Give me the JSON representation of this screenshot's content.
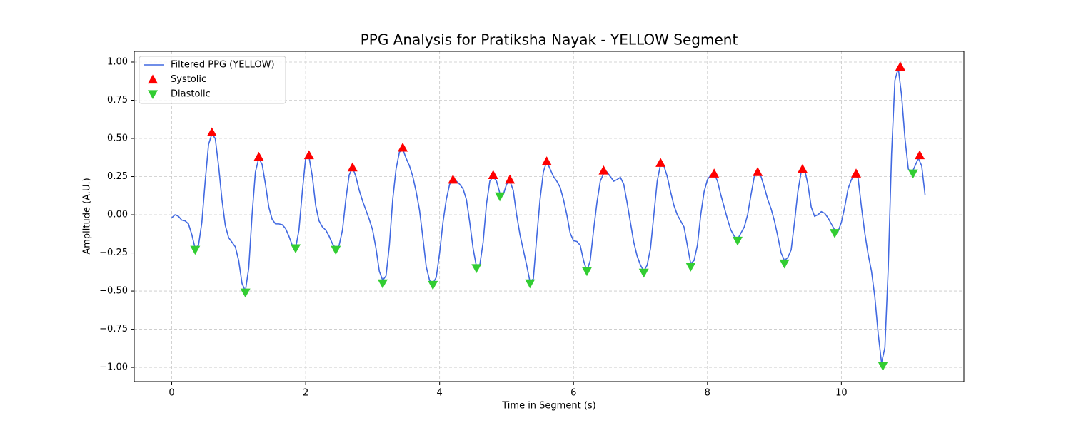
{
  "chart_data": {
    "type": "line",
    "title": "PPG Analysis for Pratiksha Nayak - YELLOW Segment",
    "x_label": "Time in Segment (s)",
    "y_label": "Amplitude (A.U.)",
    "xlim": [
      -0.56,
      11.83
    ],
    "ylim": [
      -1.093,
      1.07
    ],
    "xticks": [
      0,
      2,
      4,
      6,
      8,
      10
    ],
    "yticks": [
      {
        "value": -1,
        "label": "−1.00"
      },
      {
        "value": -0.75,
        "label": "−0.75"
      },
      {
        "value": -0.5,
        "label": "−0.50"
      },
      {
        "value": -0.25,
        "label": "−0.25"
      },
      {
        "value": 0,
        "label": "0.00"
      },
      {
        "value": 0.25,
        "label": "0.25"
      },
      {
        "value": 0.5,
        "label": "0.50"
      },
      {
        "value": 0.75,
        "label": "0.75"
      },
      {
        "value": 1,
        "label": "1.00"
      }
    ],
    "grid": true,
    "legend": "upper-left",
    "series": [
      {
        "name": "Filtered PPG (YELLOW)",
        "type": "line",
        "color": "#4169e1",
        "x": [
          0,
          0.05,
          0.1,
          0.15,
          0.2,
          0.25,
          0.3,
          0.35,
          0.4,
          0.45,
          0.5,
          0.55,
          0.6,
          0.65,
          0.7,
          0.75,
          0.8,
          0.85,
          0.9,
          0.95,
          1,
          1.05,
          1.1,
          1.15,
          1.2,
          1.25,
          1.3,
          1.35,
          1.4,
          1.45,
          1.5,
          1.55,
          1.6,
          1.65,
          1.7,
          1.75,
          1.8,
          1.85,
          1.9,
          1.95,
          2,
          2.05,
          2.1,
          2.15,
          2.2,
          2.25,
          2.3,
          2.35,
          2.4,
          2.45,
          2.5,
          2.55,
          2.6,
          2.65,
          2.7,
          2.75,
          2.8,
          2.85,
          2.9,
          2.95,
          3,
          3.05,
          3.1,
          3.15,
          3.2,
          3.25,
          3.3,
          3.35,
          3.4,
          3.45,
          3.5,
          3.55,
          3.6,
          3.65,
          3.7,
          3.75,
          3.8,
          3.85,
          3.9,
          3.95,
          4,
          4.05,
          4.1,
          4.15,
          4.2,
          4.25,
          4.3,
          4.35,
          4.4,
          4.45,
          4.5,
          4.55,
          4.6,
          4.65,
          4.7,
          4.75,
          4.8,
          4.85,
          4.9,
          4.95,
          5,
          5.05,
          5.1,
          5.15,
          5.2,
          5.25,
          5.3,
          5.35,
          5.4,
          5.45,
          5.5,
          5.55,
          5.6,
          5.65,
          5.7,
          5.75,
          5.8,
          5.85,
          5.9,
          5.95,
          6,
          6.05,
          6.1,
          6.15,
          6.2,
          6.25,
          6.3,
          6.35,
          6.4,
          6.45,
          6.5,
          6.55,
          6.6,
          6.65,
          6.7,
          6.75,
          6.8,
          6.85,
          6.9,
          6.95,
          7,
          7.05,
          7.1,
          7.15,
          7.2,
          7.25,
          7.3,
          7.35,
          7.4,
          7.45,
          7.5,
          7.55,
          7.6,
          7.65,
          7.7,
          7.75,
          7.8,
          7.85,
          7.9,
          7.95,
          8,
          8.05,
          8.1,
          8.15,
          8.2,
          8.25,
          8.3,
          8.35,
          8.4,
          8.45,
          8.5,
          8.55,
          8.6,
          8.65,
          8.7,
          8.75,
          8.8,
          8.85,
          8.9,
          8.95,
          9,
          9.05,
          9.1,
          9.15,
          9.2,
          9.25,
          9.3,
          9.35,
          9.4,
          9.45,
          9.5,
          9.55,
          9.6,
          9.65,
          9.7,
          9.75,
          9.8,
          9.85,
          9.9,
          9.95,
          10,
          10.05,
          10.1,
          10.15,
          10.2,
          10.25,
          10.3,
          10.35,
          10.4,
          10.45,
          10.5,
          10.55,
          10.6,
          10.65,
          10.7,
          10.75,
          10.8,
          10.85,
          10.9,
          10.95,
          11,
          11.05,
          11.1,
          11.15,
          11.2,
          11.25
        ],
        "values": [
          -0.02,
          0.0,
          -0.01,
          -0.035,
          -0.04,
          -0.06,
          -0.13,
          -0.22,
          -0.2,
          -0.05,
          0.22,
          0.46,
          0.53,
          0.5,
          0.32,
          0.1,
          -0.07,
          -0.15,
          -0.18,
          -0.21,
          -0.3,
          -0.45,
          -0.5,
          -0.35,
          0.0,
          0.28,
          0.37,
          0.33,
          0.2,
          0.05,
          -0.03,
          -0.06,
          -0.06,
          -0.065,
          -0.09,
          -0.14,
          -0.2,
          -0.22,
          -0.1,
          0.15,
          0.37,
          0.38,
          0.25,
          0.06,
          -0.04,
          -0.08,
          -0.1,
          -0.14,
          -0.19,
          -0.22,
          -0.2,
          -0.1,
          0.1,
          0.26,
          0.31,
          0.25,
          0.16,
          0.09,
          0.03,
          -0.03,
          -0.1,
          -0.22,
          -0.37,
          -0.43,
          -0.4,
          -0.2,
          0.1,
          0.3,
          0.41,
          0.43,
          0.37,
          0.32,
          0.25,
          0.15,
          0.03,
          -0.15,
          -0.34,
          -0.43,
          -0.45,
          -0.41,
          -0.25,
          -0.05,
          0.1,
          0.2,
          0.22,
          0.22,
          0.2,
          0.17,
          0.1,
          -0.05,
          -0.22,
          -0.34,
          -0.33,
          -0.18,
          0.07,
          0.22,
          0.25,
          0.22,
          0.14,
          0.13,
          0.2,
          0.22,
          0.16,
          0.0,
          -0.13,
          -0.23,
          -0.33,
          -0.44,
          -0.42,
          -0.15,
          0.1,
          0.28,
          0.35,
          0.3,
          0.25,
          0.22,
          0.18,
          0.1,
          0.0,
          -0.12,
          -0.17,
          -0.175,
          -0.2,
          -0.3,
          -0.37,
          -0.3,
          -0.1,
          0.08,
          0.22,
          0.27,
          0.28,
          0.25,
          0.22,
          0.23,
          0.245,
          0.2,
          0.08,
          -0.05,
          -0.18,
          -0.27,
          -0.33,
          -0.37,
          -0.33,
          -0.22,
          0.0,
          0.22,
          0.33,
          0.32,
          0.25,
          0.15,
          0.06,
          0.0,
          -0.04,
          -0.08,
          -0.2,
          -0.32,
          -0.3,
          -0.2,
          0.0,
          0.15,
          0.23,
          0.26,
          0.27,
          0.22,
          0.13,
          0.05,
          -0.03,
          -0.1,
          -0.14,
          -0.16,
          -0.12,
          -0.08,
          0.0,
          0.13,
          0.25,
          0.28,
          0.25,
          0.18,
          0.1,
          0.04,
          -0.04,
          -0.14,
          -0.25,
          -0.3,
          -0.28,
          -0.23,
          -0.05,
          0.15,
          0.28,
          0.3,
          0.2,
          0.05,
          -0.01,
          0.0,
          0.02,
          0.01,
          -0.02,
          -0.06,
          -0.1,
          -0.11,
          -0.05,
          0.05,
          0.17,
          0.23,
          0.26,
          0.24,
          0.05,
          -0.12,
          -0.26,
          -0.37,
          -0.54,
          -0.78,
          -0.97,
          -0.87,
          -0.35,
          0.4,
          0.88,
          0.96,
          0.78,
          0.5,
          0.3,
          0.27,
          0.32,
          0.37,
          0.32,
          0.13
        ]
      },
      {
        "name": "Systolic",
        "type": "scatter",
        "marker": "triangle-up",
        "color": "#ff0000",
        "x": [
          0.6,
          1.3,
          2.05,
          2.7,
          3.45,
          4.2,
          4.8,
          5.05,
          5.6,
          6.45,
          7.3,
          8.1,
          8.75,
          9.42,
          10.22,
          10.88,
          11.17
        ],
        "values": [
          0.54,
          0.38,
          0.39,
          0.31,
          0.44,
          0.23,
          0.26,
          0.23,
          0.35,
          0.29,
          0.34,
          0.27,
          0.28,
          0.3,
          0.27,
          0.97,
          0.39
        ]
      },
      {
        "name": "Diastolic",
        "type": "scatter",
        "marker": "triangle-down",
        "color": "#32cd32",
        "x": [
          0.35,
          1.1,
          1.85,
          2.45,
          3.15,
          3.9,
          4.55,
          4.9,
          5.35,
          6.2,
          7.05,
          7.75,
          8.45,
          9.15,
          9.9,
          10.62,
          11.07
        ],
        "values": [
          -0.23,
          -0.51,
          -0.22,
          -0.23,
          -0.45,
          -0.46,
          -0.35,
          0.12,
          -0.45,
          -0.37,
          -0.38,
          -0.34,
          -0.17,
          -0.32,
          -0.12,
          -0.99,
          0.27
        ]
      }
    ]
  }
}
